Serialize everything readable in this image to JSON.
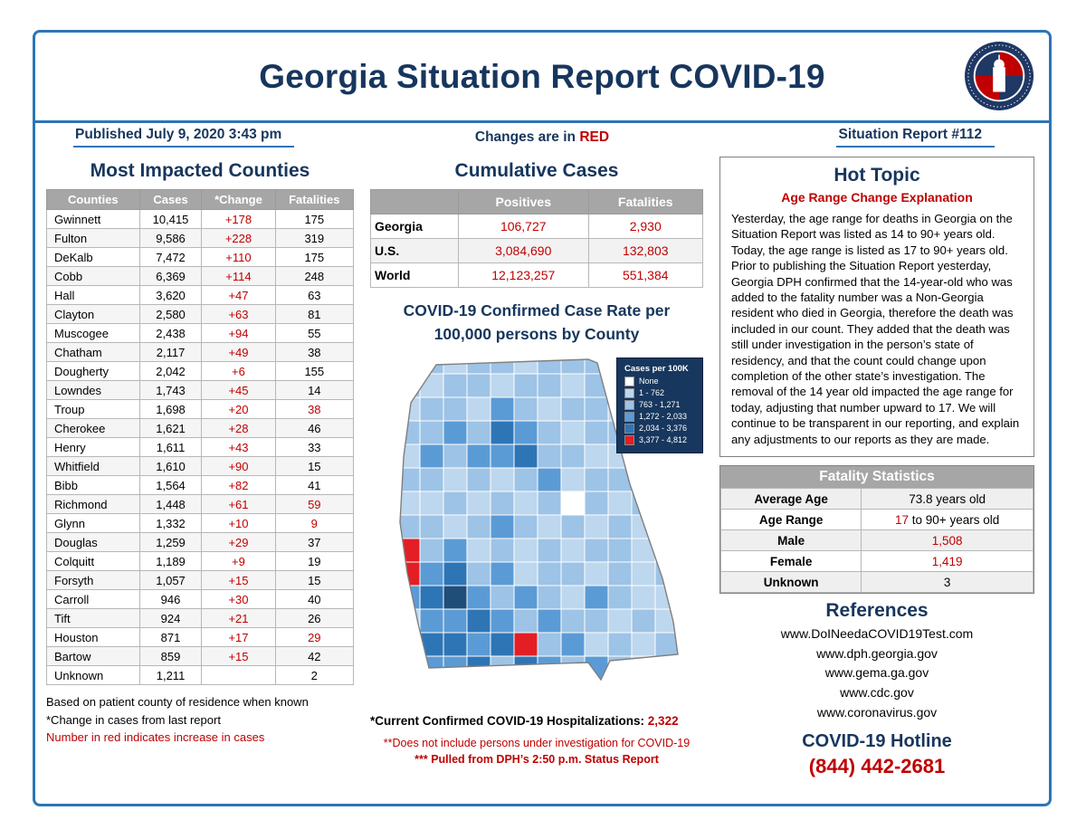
{
  "header": {
    "title": "Georgia Situation Report COVID-19",
    "published": "Published July 9, 2020 3:43 pm",
    "changes_prefix": "Changes are in ",
    "changes_highlight": "RED",
    "report_no": "Situation Report #112"
  },
  "counties": {
    "title": "Most Impacted Counties",
    "columns": [
      "Counties",
      "Cases",
      "*Change",
      "Fatalities"
    ],
    "rows": [
      {
        "county": "Gwinnett",
        "cases": "10,415",
        "change": "+178",
        "fatalities": "175",
        "fat_red": false
      },
      {
        "county": "Fulton",
        "cases": "9,586",
        "change": "+228",
        "fatalities": "319",
        "fat_red": false
      },
      {
        "county": "DeKalb",
        "cases": "7,472",
        "change": "+110",
        "fatalities": "175",
        "fat_red": false
      },
      {
        "county": "Cobb",
        "cases": "6,369",
        "change": "+114",
        "fatalities": "248",
        "fat_red": false
      },
      {
        "county": "Hall",
        "cases": "3,620",
        "change": "+47",
        "fatalities": "63",
        "fat_red": false
      },
      {
        "county": "Clayton",
        "cases": "2,580",
        "change": "+63",
        "fatalities": "81",
        "fat_red": false
      },
      {
        "county": "Muscogee",
        "cases": "2,438",
        "change": "+94",
        "fatalities": "55",
        "fat_red": false
      },
      {
        "county": "Chatham",
        "cases": "2,117",
        "change": "+49",
        "fatalities": "38",
        "fat_red": false
      },
      {
        "county": "Dougherty",
        "cases": "2,042",
        "change": "+6",
        "fatalities": "155",
        "fat_red": false
      },
      {
        "county": "Lowndes",
        "cases": "1,743",
        "change": "+45",
        "fatalities": "14",
        "fat_red": false
      },
      {
        "county": "Troup",
        "cases": "1,698",
        "change": "+20",
        "fatalities": "38",
        "fat_red": true
      },
      {
        "county": "Cherokee",
        "cases": "1,621",
        "change": "+28",
        "fatalities": "46",
        "fat_red": false
      },
      {
        "county": "Henry",
        "cases": "1,611",
        "change": "+43",
        "fatalities": "33",
        "fat_red": false
      },
      {
        "county": "Whitfield",
        "cases": "1,610",
        "change": "+90",
        "fatalities": "15",
        "fat_red": false
      },
      {
        "county": "Bibb",
        "cases": "1,564",
        "change": "+82",
        "fatalities": "41",
        "fat_red": false
      },
      {
        "county": "Richmond",
        "cases": "1,448",
        "change": "+61",
        "fatalities": "59",
        "fat_red": true
      },
      {
        "county": "Glynn",
        "cases": "1,332",
        "change": "+10",
        "fatalities": "9",
        "fat_red": true
      },
      {
        "county": "Douglas",
        "cases": "1,259",
        "change": "+29",
        "fatalities": "37",
        "fat_red": false
      },
      {
        "county": "Colquitt",
        "cases": "1,189",
        "change": "+9",
        "fatalities": "19",
        "fat_red": false
      },
      {
        "county": "Forsyth",
        "cases": "1,057",
        "change": "+15",
        "fatalities": "15",
        "fat_red": false
      },
      {
        "county": "Carroll",
        "cases": "946",
        "change": "+30",
        "fatalities": "40",
        "fat_red": false
      },
      {
        "county": "Tift",
        "cases": "924",
        "change": "+21",
        "fatalities": "26",
        "fat_red": false
      },
      {
        "county": "Houston",
        "cases": "871",
        "change": "+17",
        "fatalities": "29",
        "fat_red": true
      },
      {
        "county": "Bartow",
        "cases": "859",
        "change": "+15",
        "fatalities": "42",
        "fat_red": false
      },
      {
        "county": "Unknown",
        "cases": "1,211",
        "change": "",
        "fatalities": "2",
        "fat_red": false
      }
    ],
    "notes": [
      {
        "text": "Based on patient county of residence when known",
        "red": false
      },
      {
        "text": "*Change in cases from last report",
        "red": false
      },
      {
        "text": "Number in red indicates increase in cases",
        "red": true
      }
    ]
  },
  "cumulative": {
    "title": "Cumulative Cases",
    "columns": [
      "",
      "Positives",
      "Fatalities"
    ],
    "rows": [
      {
        "region": "Georgia",
        "positives": "106,727",
        "fatalities": "2,930"
      },
      {
        "region": "U.S.",
        "positives": "3,084,690",
        "fatalities": "132,803"
      },
      {
        "region": "World",
        "positives": "12,123,257",
        "fatalities": "551,384"
      }
    ]
  },
  "map": {
    "title_line1": "COVID-19 Confirmed Case Rate per",
    "title_line2": "100,000 persons by County",
    "legend_title": "Cases per 100K",
    "legend": [
      {
        "label": "None",
        "color": "#ffffff"
      },
      {
        "label": "1 - 762",
        "color": "#bdd7ee"
      },
      {
        "label": "763 - 1,271",
        "color": "#9dc3e6"
      },
      {
        "label": "1,272 - 2,033",
        "color": "#5b9bd5"
      },
      {
        "label": "2,034 - 3,376",
        "color": "#2e75b6"
      },
      {
        "label": "3,377 - 4,812",
        "color": "#e31e24"
      }
    ],
    "shade_colors": {
      "0": "#ffffff",
      "1": "#bdd7ee",
      "2": "#9dc3e6",
      "3": "#5b9bd5",
      "4": "#2e75b6",
      "5": "#1f4e79",
      "R": "#e31e24"
    },
    "pattern": [
      "02212212221212",
      "12122122122121",
      "21221321221221",
      "12232432122122",
      "21323342211212",
      "12212123122121",
      "21121212021212",
      "12212321212121",
      "2R231212122112",
      "2R342312212121",
      "13453232132112",
      "21334323221211",
      "124434R2312122",
      "21334243232112",
      "12223143221212",
      "21122122121121"
    ],
    "hospitalizations_label": "*Current Confirmed COVID-19 Hospitalizations: ",
    "hospitalizations_value": "2,322",
    "note1": "**Does not include persons under investigation for COVID-19",
    "note2": "*** Pulled from DPH’s 2:50 p.m. Status Report"
  },
  "hot_topic": {
    "title": "Hot Topic",
    "subtitle": "Age Range Change Explanation",
    "body": "Yesterday, the age range for deaths in Georgia on the Situation Report was listed as 14 to 90+ years old. Today, the age range is listed as 17 to 90+ years old. Prior to publishing the Situation Report yesterday, Georgia DPH confirmed that the 14-year-old who was added to the fatality number was a Non-Georgia resident who died in Georgia, therefore the death was included in our count. They added that the death was still under investigation in the person’s state of residency, and that the count could change upon completion of the other state’s investigation. The removal of the 14 year old impacted the age range for today, adjusting that number upward to 17. We will continue to be transparent in our reporting, and explain any adjustments to our reports as they are made."
  },
  "fatality_stats": {
    "title": "Fatality Statistics",
    "rows": [
      {
        "label": "Average Age",
        "segments": [
          {
            "text": "73.8 years old",
            "red": false
          }
        ]
      },
      {
        "label": "Age Range",
        "segments": [
          {
            "text": "17",
            "red": true
          },
          {
            "text": " to 90+ years old",
            "red": false
          }
        ]
      },
      {
        "label": "Male",
        "segments": [
          {
            "text": "1,508",
            "red": true
          }
        ]
      },
      {
        "label": "Female",
        "segments": [
          {
            "text": "1,419",
            "red": true
          }
        ]
      },
      {
        "label": "Unknown",
        "segments": [
          {
            "text": "3",
            "red": false
          }
        ]
      }
    ]
  },
  "references": {
    "title": "References",
    "links": [
      "www.DoINeedaCOVID19Test.com",
      "www.dph.georgia.gov",
      "www.gema.ga.gov",
      "www.cdc.gov",
      "www.coronavirus.gov"
    ]
  },
  "hotline": {
    "title": "COVID-19 Hotline",
    "number": "(844) 442-2681"
  }
}
